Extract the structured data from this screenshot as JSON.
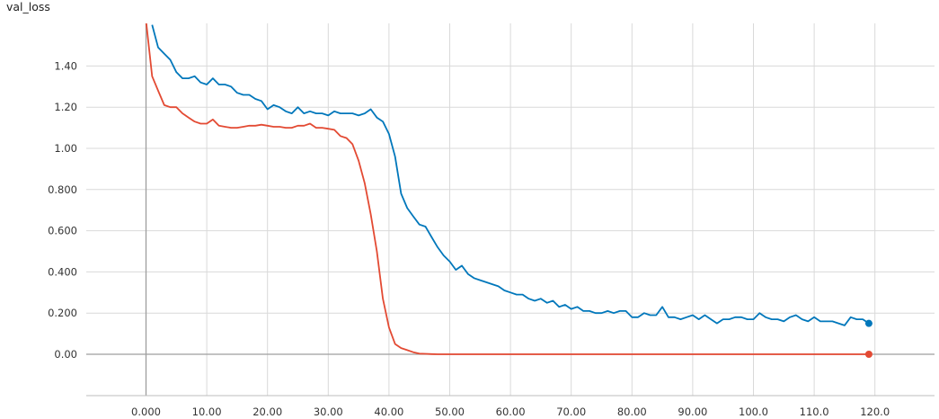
{
  "chart_data": {
    "type": "line",
    "title": "val_loss",
    "xlabel": "",
    "ylabel": "",
    "xlim": [
      -10,
      128
    ],
    "ylim": [
      -0.2,
      1.6
    ],
    "grid": true,
    "x_ticks": [
      {
        "value": 0,
        "label": "0.000"
      },
      {
        "value": 10,
        "label": "10.00"
      },
      {
        "value": 20,
        "label": "20.00"
      },
      {
        "value": 30,
        "label": "30.00"
      },
      {
        "value": 40,
        "label": "40.00"
      },
      {
        "value": 50,
        "label": "50.00"
      },
      {
        "value": 60,
        "label": "60.00"
      },
      {
        "value": 70,
        "label": "70.00"
      },
      {
        "value": 80,
        "label": "80.00"
      },
      {
        "value": 90,
        "label": "90.00"
      },
      {
        "value": 100,
        "label": "100.0"
      },
      {
        "value": 110,
        "label": "110.0"
      },
      {
        "value": 120,
        "label": "120.0"
      }
    ],
    "y_ticks": [
      {
        "value": 0,
        "label": "0.00"
      },
      {
        "value": 0.2,
        "label": "0.200"
      },
      {
        "value": 0.4,
        "label": "0.400"
      },
      {
        "value": 0.6,
        "label": "0.600"
      },
      {
        "value": 0.8,
        "label": "0.800"
      },
      {
        "value": 1.0,
        "label": "1.00"
      },
      {
        "value": 1.2,
        "label": "1.20"
      },
      {
        "value": 1.4,
        "label": "1.40"
      }
    ],
    "series": [
      {
        "color": "#e34a33",
        "x": [
          0,
          1,
          2,
          3,
          4,
          5,
          6,
          7,
          8,
          9,
          10,
          11,
          12,
          13,
          14,
          15,
          16,
          17,
          18,
          19,
          20,
          21,
          22,
          23,
          24,
          25,
          26,
          27,
          28,
          29,
          30,
          31,
          32,
          33,
          34,
          35,
          36,
          37,
          38,
          39,
          40,
          41,
          42,
          43,
          44,
          45,
          46,
          47,
          48,
          50,
          55,
          60,
          70,
          80,
          90,
          100,
          110,
          119
        ],
        "y": [
          1.62,
          1.35,
          1.28,
          1.21,
          1.2,
          1.2,
          1.17,
          1.15,
          1.13,
          1.12,
          1.12,
          1.14,
          1.11,
          1.105,
          1.1,
          1.1,
          1.105,
          1.11,
          1.11,
          1.115,
          1.11,
          1.105,
          1.105,
          1.1,
          1.1,
          1.11,
          1.11,
          1.12,
          1.1,
          1.1,
          1.095,
          1.09,
          1.06,
          1.05,
          1.02,
          0.94,
          0.83,
          0.68,
          0.5,
          0.27,
          0.13,
          0.05,
          0.03,
          0.02,
          0.01,
          0.003,
          0.002,
          0.001,
          0.0,
          0.0,
          0.0,
          0.0,
          0.0,
          0.0,
          0.0,
          0.0,
          0.0,
          0.0
        ]
      },
      {
        "color": "#0077bb",
        "x": [
          1,
          2,
          3,
          4,
          5,
          6,
          7,
          8,
          9,
          10,
          11,
          12,
          13,
          14,
          15,
          16,
          17,
          18,
          19,
          20,
          21,
          22,
          23,
          24,
          25,
          26,
          27,
          28,
          29,
          30,
          31,
          32,
          33,
          34,
          35,
          36,
          37,
          38,
          39,
          40,
          41,
          42,
          43,
          44,
          45,
          46,
          47,
          48,
          49,
          50,
          51,
          52,
          53,
          54,
          55,
          56,
          57,
          58,
          59,
          60,
          61,
          62,
          63,
          64,
          65,
          66,
          67,
          68,
          69,
          70,
          71,
          72,
          73,
          74,
          75,
          76,
          77,
          78,
          79,
          80,
          81,
          82,
          83,
          84,
          85,
          86,
          87,
          88,
          89,
          90,
          91,
          92,
          93,
          94,
          95,
          96,
          97,
          98,
          99,
          100,
          101,
          102,
          103,
          104,
          105,
          106,
          107,
          108,
          109,
          110,
          111,
          112,
          113,
          114,
          115,
          116,
          117,
          118,
          119
        ],
        "y": [
          1.6,
          1.49,
          1.46,
          1.43,
          1.37,
          1.34,
          1.34,
          1.35,
          1.32,
          1.31,
          1.34,
          1.31,
          1.31,
          1.3,
          1.27,
          1.26,
          1.26,
          1.24,
          1.23,
          1.19,
          1.21,
          1.2,
          1.18,
          1.17,
          1.2,
          1.17,
          1.18,
          1.17,
          1.17,
          1.16,
          1.18,
          1.17,
          1.17,
          1.17,
          1.16,
          1.17,
          1.19,
          1.15,
          1.13,
          1.07,
          0.96,
          0.78,
          0.71,
          0.67,
          0.63,
          0.62,
          0.57,
          0.52,
          0.48,
          0.45,
          0.41,
          0.43,
          0.39,
          0.37,
          0.36,
          0.35,
          0.34,
          0.33,
          0.31,
          0.3,
          0.29,
          0.29,
          0.27,
          0.26,
          0.27,
          0.25,
          0.26,
          0.23,
          0.24,
          0.22,
          0.23,
          0.21,
          0.21,
          0.2,
          0.2,
          0.21,
          0.2,
          0.21,
          0.21,
          0.18,
          0.18,
          0.2,
          0.19,
          0.19,
          0.23,
          0.18,
          0.18,
          0.17,
          0.18,
          0.19,
          0.17,
          0.19,
          0.17,
          0.15,
          0.17,
          0.17,
          0.18,
          0.18,
          0.17,
          0.17,
          0.2,
          0.18,
          0.17,
          0.17,
          0.16,
          0.18,
          0.19,
          0.17,
          0.16,
          0.18,
          0.16,
          0.16,
          0.16,
          0.15,
          0.14,
          0.18,
          0.17,
          0.17,
          0.15
        ]
      }
    ]
  }
}
